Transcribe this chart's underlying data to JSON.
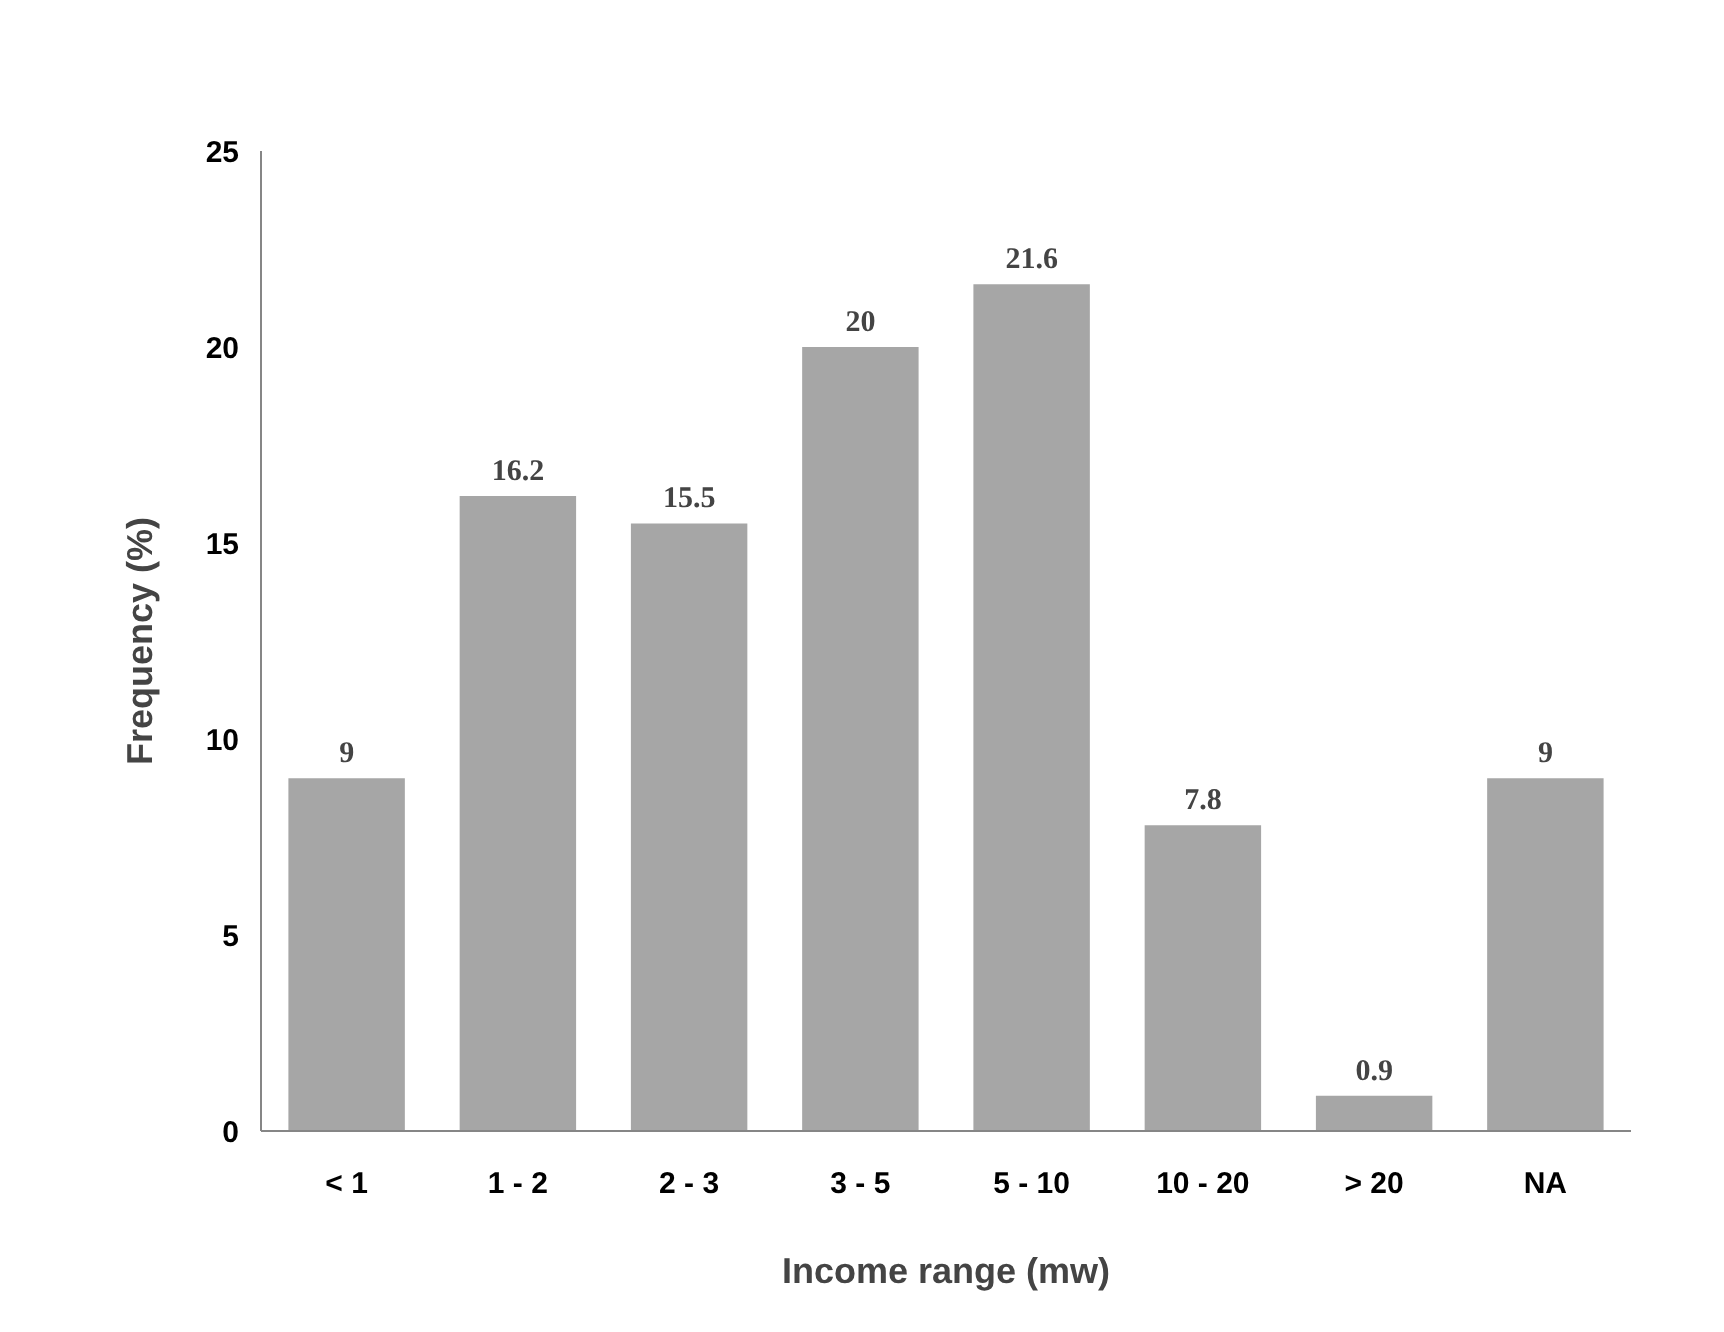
{
  "chart_data": {
    "type": "bar",
    "xlabel": "Income range (mw)",
    "ylabel": "Frequency (%)",
    "categories": [
      "< 1",
      "1 - 2",
      "2 - 3",
      "3 - 5",
      "5 - 10",
      "10 - 20",
      "> 20",
      "NA"
    ],
    "values": [
      9,
      16.2,
      15.5,
      20,
      21.6,
      7.8,
      0.9,
      9
    ],
    "color": "#a6a6a6",
    "ylim": [
      0,
      25
    ],
    "yticks": [
      0,
      5,
      10,
      15,
      20,
      25
    ],
    "grid": false,
    "data_labels": true
  }
}
